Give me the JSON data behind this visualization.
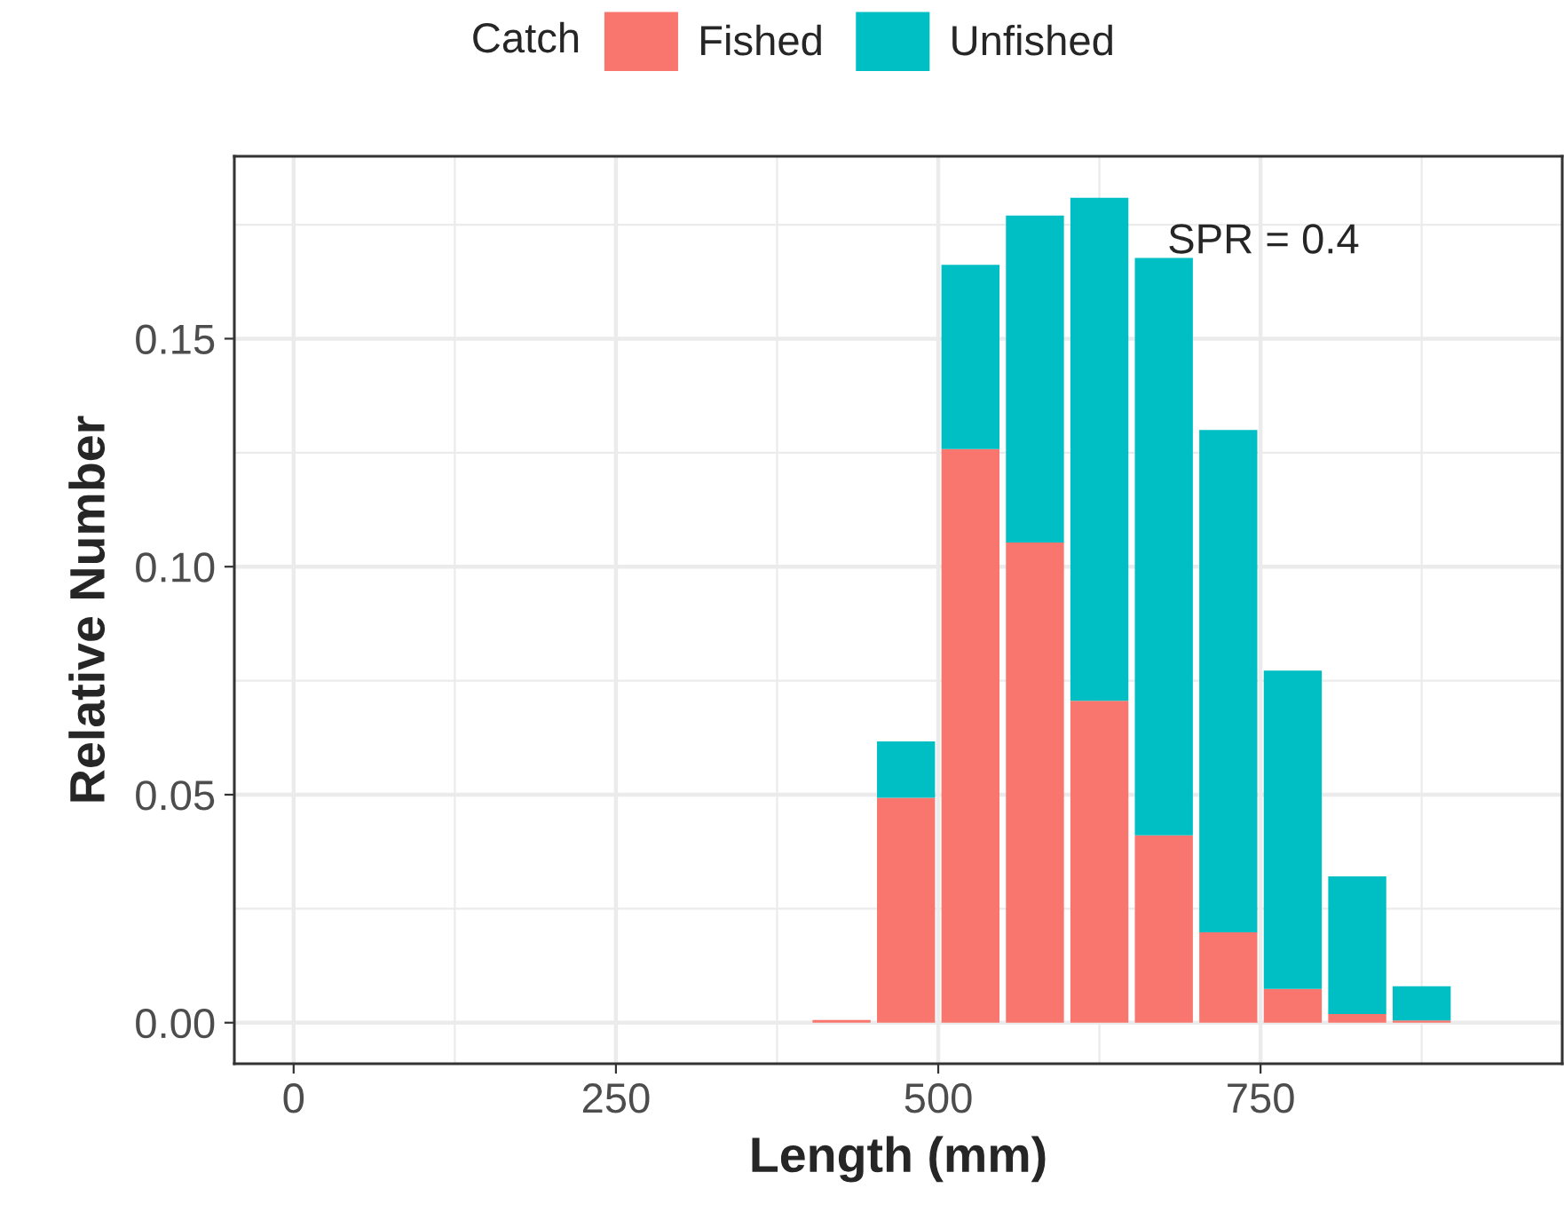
{
  "chart_data": {
    "type": "bar",
    "stacked": true,
    "xlabel": "Length (mm)",
    "ylabel": "Relative Number",
    "legend_title": "Catch",
    "legend": "top",
    "x": [
      425,
      475,
      525,
      575,
      625,
      675,
      725,
      775,
      825,
      875
    ],
    "series": [
      {
        "name": "Fished",
        "color": "#f8766d",
        "values": [
          0.0006,
          0.0493,
          0.1258,
          0.1053,
          0.0706,
          0.0411,
          0.0198,
          0.0074,
          0.0019,
          0.0005
        ]
      },
      {
        "name": "Unfished",
        "color": "#00bfc4",
        "values": [
          0,
          0.0124,
          0.0404,
          0.0717,
          0.1103,
          0.1266,
          0.1102,
          0.0698,
          0.0302,
          0.0075
        ]
      }
    ],
    "xlim": [
      -46,
      984
    ],
    "xticks": [
      0,
      250,
      500,
      750
    ],
    "ylim": [
      -0.009,
      0.19
    ],
    "yticks": [
      {
        "value": 0,
        "label": "0.00"
      },
      {
        "value": 0.05,
        "label": "0.05"
      },
      {
        "value": 0.1,
        "label": "0.10"
      },
      {
        "value": 0.15,
        "label": "0.15"
      }
    ],
    "grid": true,
    "annotations": [
      "SPR = 0.4"
    ]
  }
}
